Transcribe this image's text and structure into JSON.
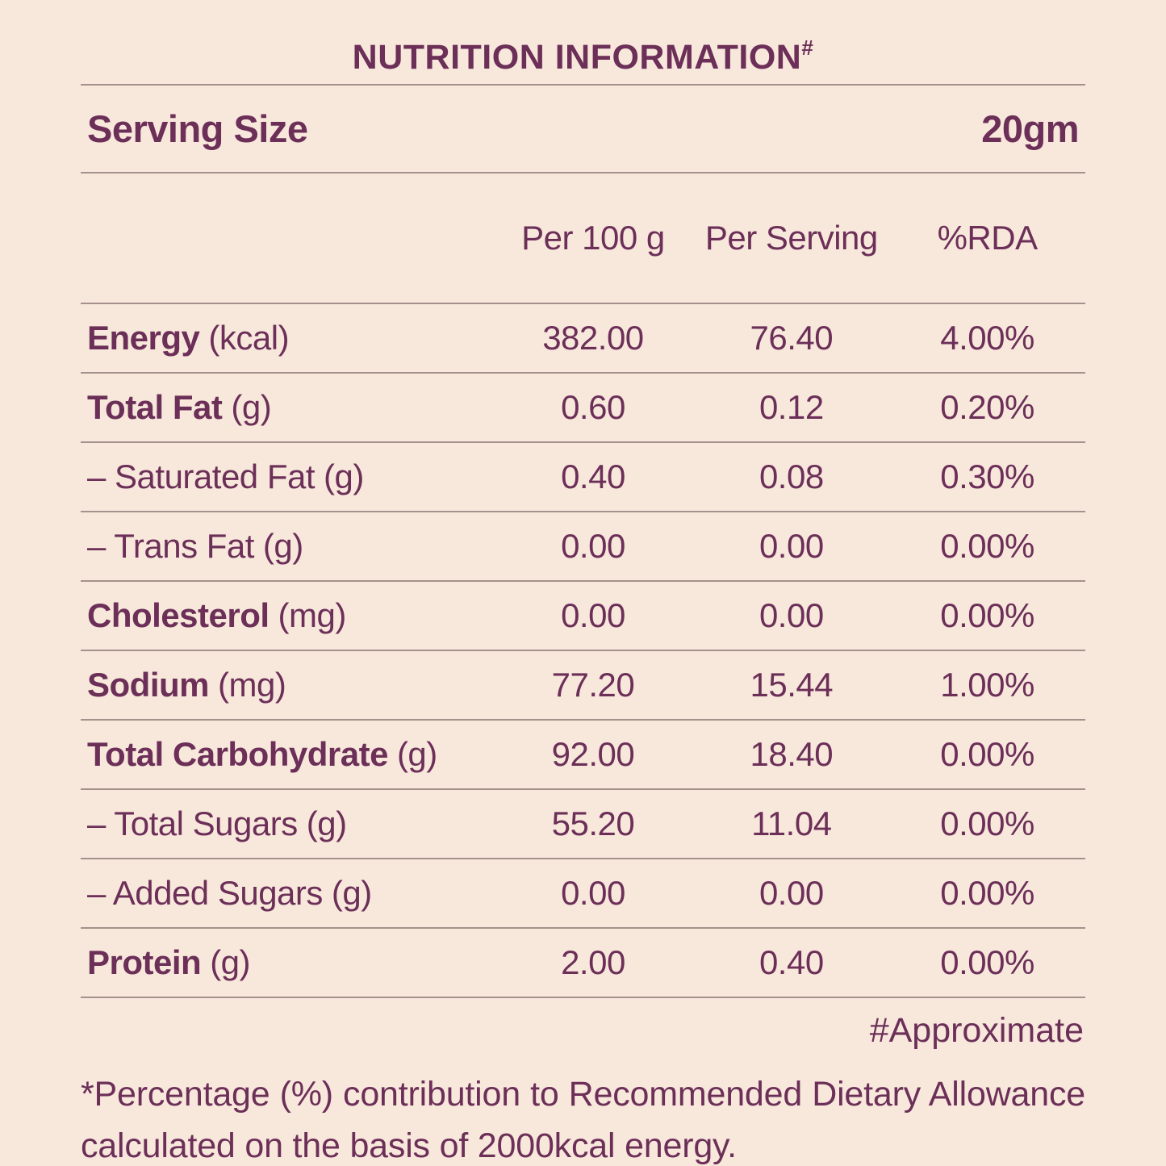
{
  "page": {
    "background_color": "#f8e8dc",
    "text_color": "#6c2f58",
    "rule_color": "#a6908b"
  },
  "header": {
    "title": "NUTRITION INFORMATION",
    "superscript": "#"
  },
  "serving": {
    "label": "Serving Size",
    "value": "20gm"
  },
  "table": {
    "columns": {
      "per_100g": "Per 100 g",
      "per_serving": "Per Serving",
      "rda": "%RDA"
    },
    "rows": [
      {
        "name": "Energy",
        "unit": "(kcal)",
        "per_100g": "382.00",
        "per_serving": "76.40",
        "rda": "4.00%"
      },
      {
        "name": "Total Fat",
        "unit": "(g)",
        "per_100g": "0.60",
        "per_serving": "0.12",
        "rda": "0.20%"
      },
      {
        "name": "– Saturated Fat",
        "unit": "(g)",
        "per_100g": "0.40",
        "per_serving": "0.08",
        "rda": "0.30%"
      },
      {
        "name": "– Trans Fat",
        "unit": "(g)",
        "per_100g": "0.00",
        "per_serving": "0.00",
        "rda": "0.00%"
      },
      {
        "name": "Cholesterol",
        "unit": "(mg)",
        "per_100g": "0.00",
        "per_serving": "0.00",
        "rda": "0.00%"
      },
      {
        "name": "Sodium",
        "unit": "(mg)",
        "per_100g": "77.20",
        "per_serving": "15.44",
        "rda": "1.00%"
      },
      {
        "name": "Total Carbohydrate",
        "unit": "(g)",
        "per_100g": "92.00",
        "per_serving": "18.40",
        "rda": "0.00%"
      },
      {
        "name": "– Total Sugars",
        "unit": "(g)",
        "per_100g": "55.20",
        "per_serving": "11.04",
        "rda": "0.00%"
      },
      {
        "name": "– Added Sugars",
        "unit": "(g)",
        "per_100g": "0.00",
        "per_serving": "0.00",
        "rda": "0.00%"
      },
      {
        "name": "Protein",
        "unit": "(g)",
        "per_100g": "2.00",
        "per_serving": "0.40",
        "rda": "0.00%"
      }
    ]
  },
  "footnotes": {
    "approximate": "#Approximate",
    "rda_note": "*Percentage (%) contribution to Recommended Dietary Allowance calculated on the basis of 2000kcal energy."
  }
}
